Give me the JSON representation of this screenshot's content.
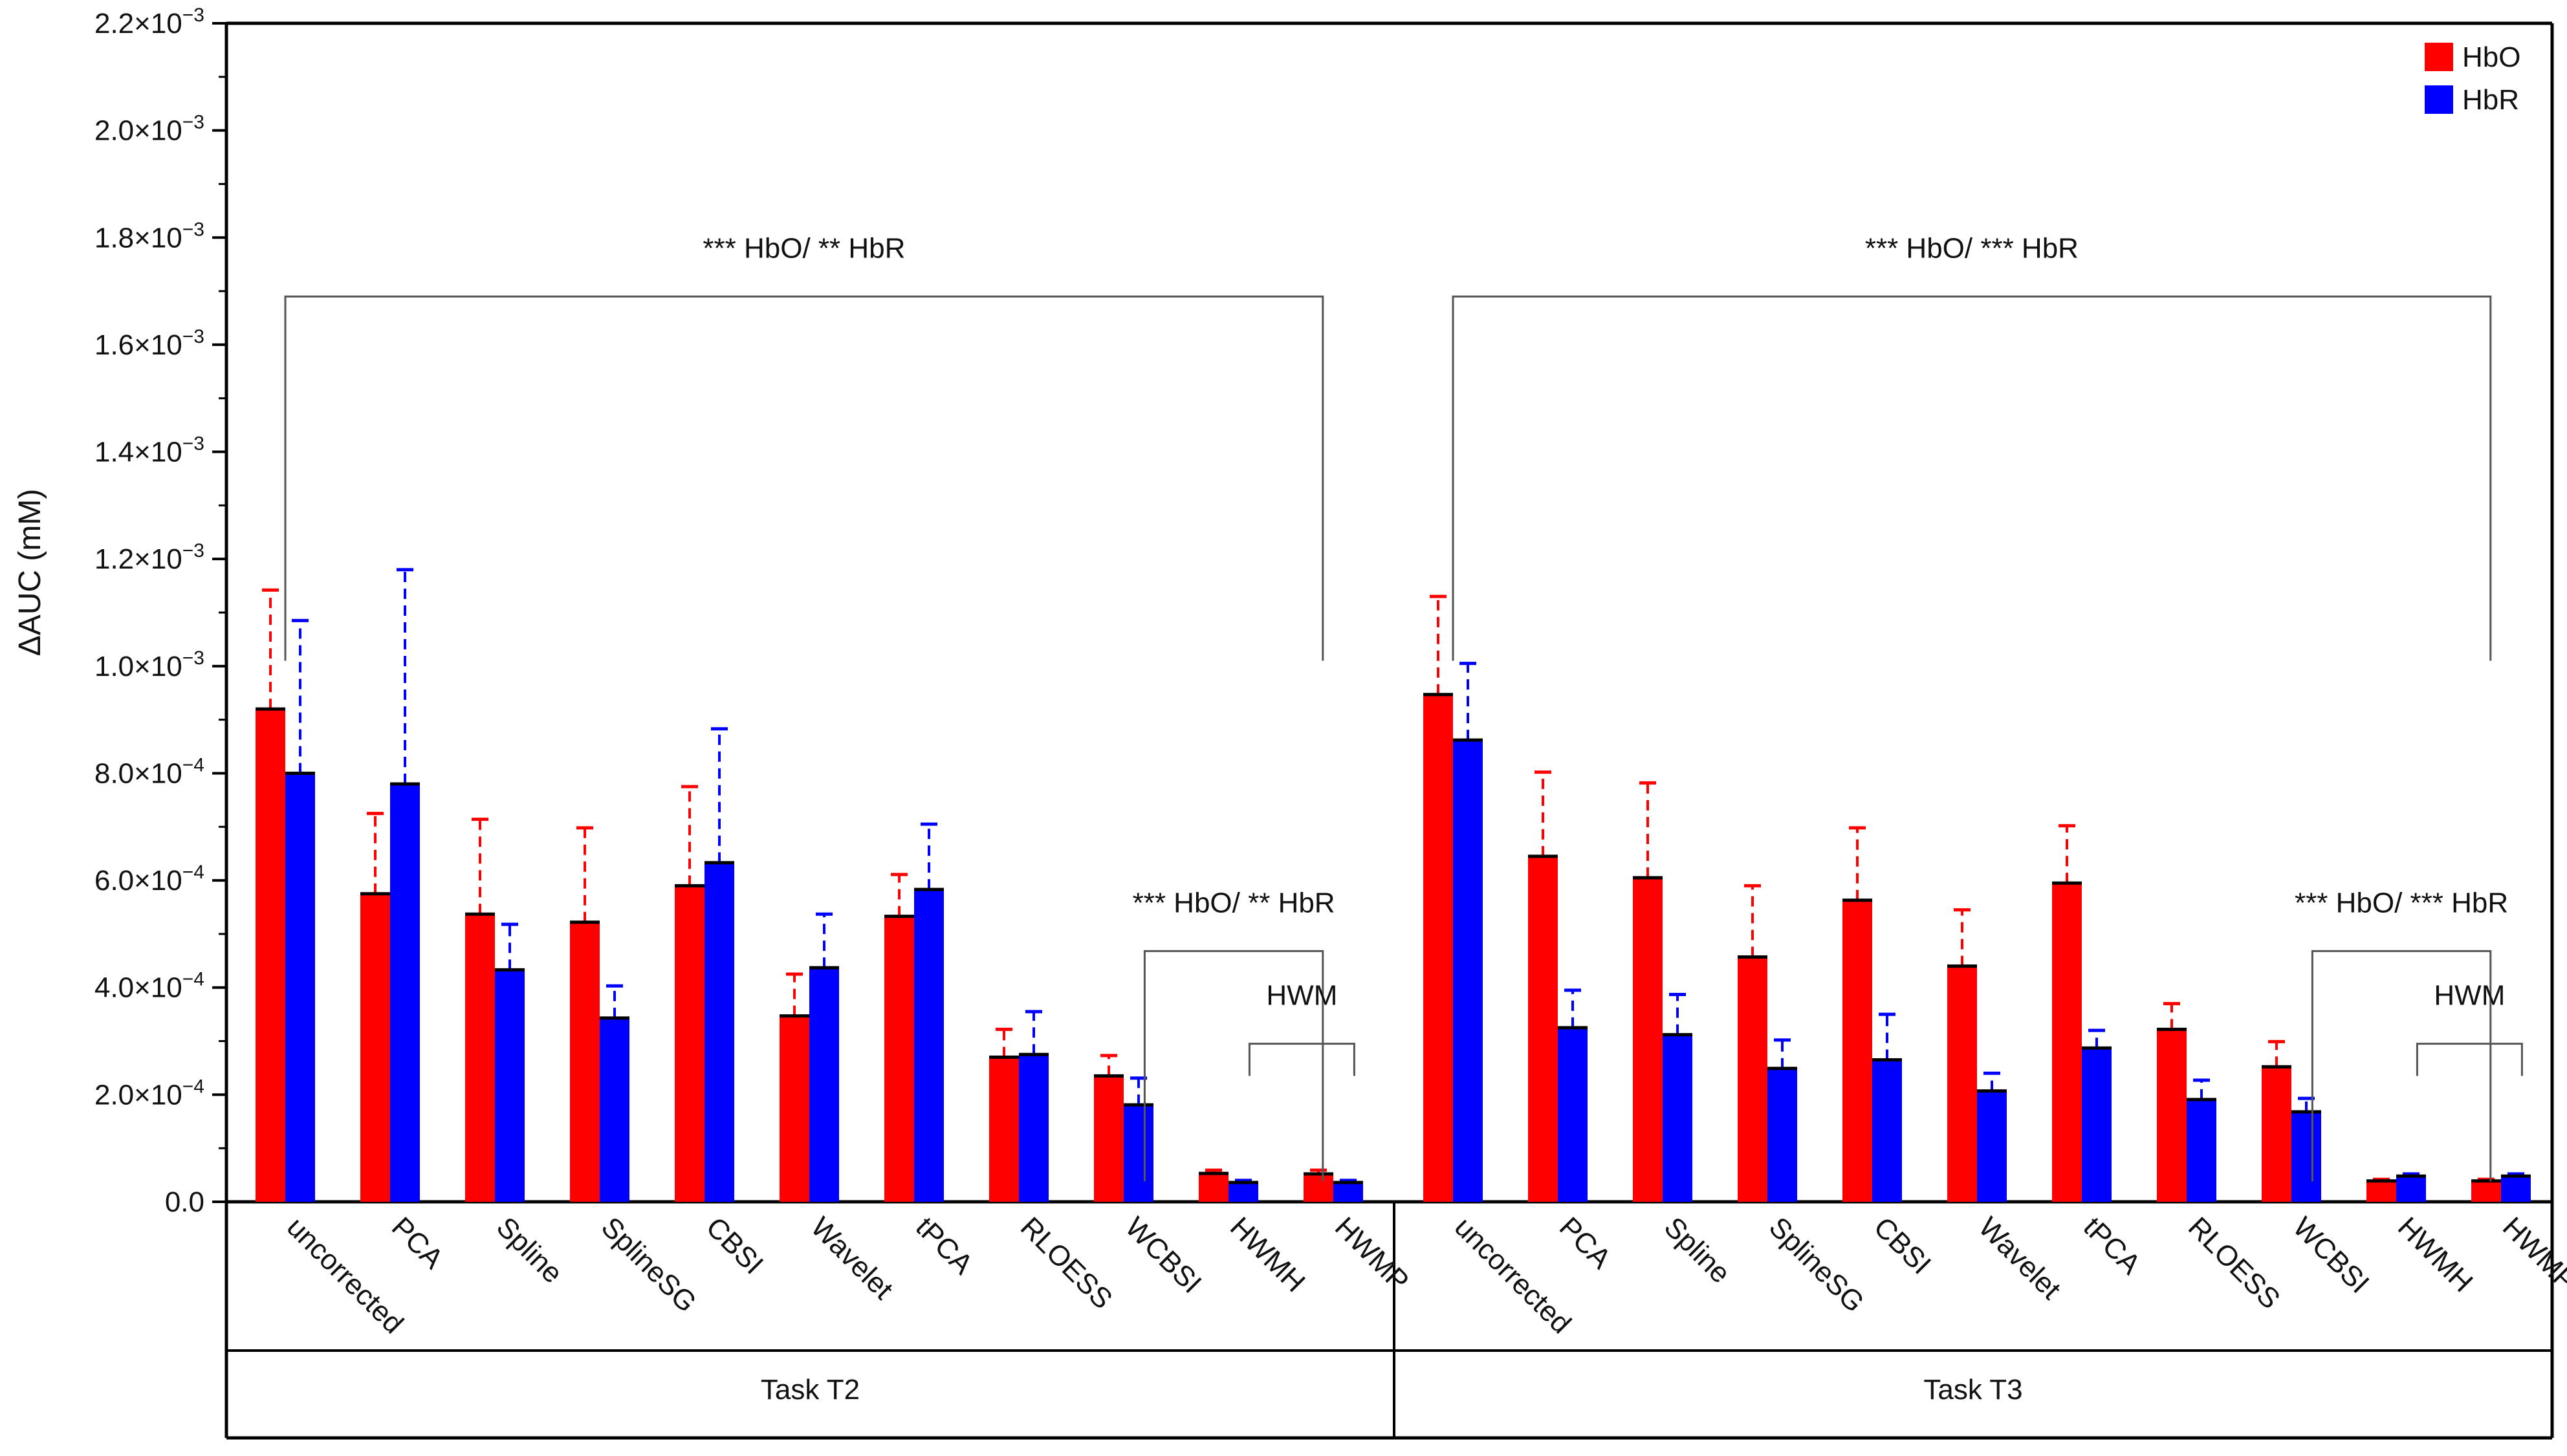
{
  "chart_data": {
    "type": "bar",
    "title": "",
    "ylabel": "ΔAUC (mM)",
    "ylim": [
      0,
      0.0022
    ],
    "yticks": [
      {
        "value": 0.0,
        "mantissa": "0.0",
        "exp": ""
      },
      {
        "value": 0.0002,
        "mantissa": "2.0×10",
        "exp": "−4"
      },
      {
        "value": 0.0004,
        "mantissa": "4.0×10",
        "exp": "−4"
      },
      {
        "value": 0.0006,
        "mantissa": "6.0×10",
        "exp": "−4"
      },
      {
        "value": 0.0008,
        "mantissa": "8.0×10",
        "exp": "−4"
      },
      {
        "value": 0.001,
        "mantissa": "1.0×10",
        "exp": "−3"
      },
      {
        "value": 0.0012,
        "mantissa": "1.2×10",
        "exp": "−3"
      },
      {
        "value": 0.0014,
        "mantissa": "1.4×10",
        "exp": "−3"
      },
      {
        "value": 0.0016,
        "mantissa": "1.6×10",
        "exp": "−3"
      },
      {
        "value": 0.0018,
        "mantissa": "1.8×10",
        "exp": "−3"
      },
      {
        "value": 0.002,
        "mantissa": "2.0×10",
        "exp": "−3"
      },
      {
        "value": 0.0022,
        "mantissa": "2.2×10",
        "exp": "−3"
      }
    ],
    "legend": [
      {
        "name": "HbO",
        "color": "#ff0000"
      },
      {
        "name": "HbR",
        "color": "#0000ff"
      }
    ],
    "legend_position": "top-right",
    "groups": [
      {
        "label": "Task T2",
        "categories": [
          "uncorrected",
          "PCA",
          "Spline",
          "SplineSG",
          "CBSI",
          "Wavelet",
          "tPCA",
          "RLOESS",
          "WCBSI",
          "HWMH",
          "HWMP"
        ],
        "series": [
          {
            "name": "HbO",
            "values": [
              0.00092,
              0.000575,
              0.000537,
              0.000522,
              0.00059,
              0.000347,
              0.000533,
              0.00027,
              0.000235,
              5.3e-05,
              5.2e-05
            ],
            "errors": [
              0.000222,
              0.00015,
              0.000177,
              0.000176,
              0.000185,
              7.8e-05,
              7.8e-05,
              5.2e-05,
              3.8e-05,
              6e-06,
              7e-06
            ]
          },
          {
            "name": "HbR",
            "values": [
              0.0008,
              0.00078,
              0.000433,
              0.000343,
              0.000633,
              0.000437,
              0.000583,
              0.000275,
              0.000181,
              3.6e-05,
              3.6e-05
            ],
            "errors": [
              0.000285,
              0.0004,
              8.5e-05,
              6e-05,
              0.00025,
              0.0001,
              0.000122,
              8e-05,
              5e-05,
              4e-06,
              4e-06
            ]
          }
        ]
      },
      {
        "label": "Task T3",
        "categories": [
          "uncorrected",
          "PCA",
          "Spline",
          "SplineSG",
          "CBSI",
          "Wavelet",
          "tPCA",
          "RLOESS",
          "WCBSI",
          "HWMH",
          "HWMP"
        ],
        "series": [
          {
            "name": "HbO",
            "values": [
              0.000947,
              0.000645,
              0.000605,
              0.000457,
              0.000563,
              0.00044,
              0.000595,
              0.000322,
              0.000252,
              3.9e-05,
              3.9e-05
            ],
            "errors": [
              0.000183,
              0.000157,
              0.000177,
              0.000133,
              0.000135,
              0.000105,
              0.000107,
              4.8e-05,
              4.7e-05,
              3e-06,
              3e-06
            ]
          },
          {
            "name": "HbR",
            "values": [
              0.000862,
              0.000325,
              0.000312,
              0.000249,
              0.000265,
              0.000207,
              0.000287,
              0.000191,
              0.000168,
              4.8e-05,
              4.8e-05
            ],
            "errors": [
              0.000143,
              7e-05,
              7.5e-05,
              5.3e-05,
              8.5e-05,
              3.3e-05,
              3.3e-05,
              3.6e-05,
              2.5e-05,
              4e-06,
              4e-06
            ]
          }
        ]
      }
    ],
    "annotations": [
      {
        "text": "*** HbO/ ** HbR",
        "group": 0,
        "from": 0,
        "to": 9.9,
        "level": 0.00169,
        "drop": 0.00068
      },
      {
        "text": "*** HbO/ ** HbR",
        "group": 0,
        "from": 8.2,
        "to": 9.9,
        "level": 0.000468,
        "drop": 0.00043
      },
      {
        "text": "HWM",
        "group": 0,
        "from": 9.2,
        "to": 10.2,
        "level": 0.000295,
        "drop": 6e-05
      },
      {
        "text": "*** HbO/ *** HbR",
        "group": 1,
        "from": 0,
        "to": 9.9,
        "level": 0.00169,
        "drop": 0.00068
      },
      {
        "text": "*** HbO/ *** HbR",
        "group": 1,
        "from": 8.2,
        "to": 9.9,
        "level": 0.000468,
        "drop": 0.00043
      },
      {
        "text": "HWM",
        "group": 1,
        "from": 9.2,
        "to": 10.2,
        "level": 0.000295,
        "drop": 6e-05
      }
    ]
  }
}
